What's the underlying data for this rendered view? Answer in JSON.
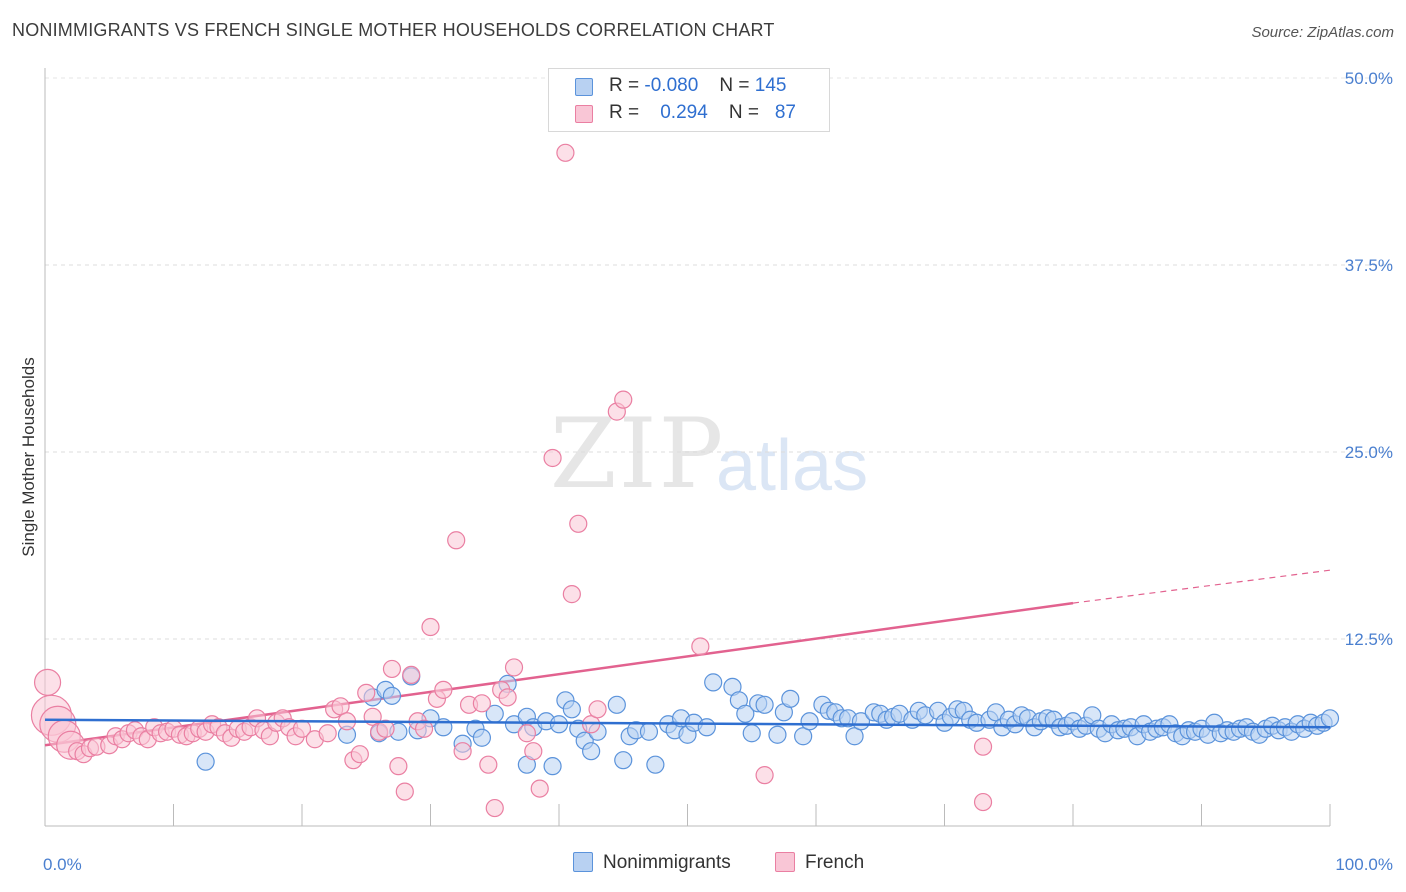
{
  "header": {
    "title": "NONIMMIGRANTS VS FRENCH SINGLE MOTHER HOUSEHOLDS CORRELATION CHART",
    "source": "Source: ZipAtlas.com"
  },
  "watermark": {
    "zip": "ZIP",
    "atlas": "atlas"
  },
  "legend": {
    "rows": [
      {
        "r_label": "R =",
        "r_value": "-0.080",
        "n_label": "N =",
        "n_value": "145"
      },
      {
        "r_label": "R =",
        "r_value": "0.294",
        "n_label": "N =",
        "n_value": "87"
      }
    ]
  },
  "bottom_legend": {
    "series1": "Nonimmigrants",
    "series2": "French"
  },
  "colors": {
    "blue_fill": "#b8d1f2",
    "blue_stroke": "#5b93db",
    "blue_line": "#2f6fd0",
    "pink_fill": "#f9c6d6",
    "pink_stroke": "#ea7fa2",
    "pink_line": "#e2628f"
  },
  "chart_data": {
    "type": "scatter",
    "title": "NONIMMIGRANTS VS FRENCH SINGLE MOTHER HOUSEHOLDS CORRELATION CHART",
    "xlabel": "",
    "ylabel": "Single Mother Households",
    "xlim": [
      0,
      100
    ],
    "ylim": [
      0,
      50
    ],
    "x_tick_labels": [
      "0.0%",
      "100.0%"
    ],
    "y_ticks": [
      12.5,
      25.0,
      37.5,
      50.0
    ],
    "y_tick_labels": [
      "12.5%",
      "25.0%",
      "37.5%",
      "50.0%"
    ],
    "series": [
      {
        "name": "Nonimmigrants",
        "r": -0.08,
        "n": 145,
        "trend": {
          "x0": 0,
          "y0": 7.1,
          "x1": 100,
          "y1": 6.6
        },
        "points": [
          [
            12.5,
            4.3
          ],
          [
            23.5,
            6.1
          ],
          [
            25.5,
            8.6
          ],
          [
            26.0,
            6.2
          ],
          [
            26.5,
            9.1
          ],
          [
            27.0,
            8.7
          ],
          [
            27.5,
            6.3
          ],
          [
            28.5,
            10.0
          ],
          [
            29.0,
            6.4
          ],
          [
            30.0,
            7.2
          ],
          [
            31.0,
            6.6
          ],
          [
            32.5,
            5.5
          ],
          [
            33.5,
            6.5
          ],
          [
            34.0,
            5.9
          ],
          [
            35.0,
            7.5
          ],
          [
            36.0,
            9.5
          ],
          [
            36.5,
            6.8
          ],
          [
            37.5,
            7.3
          ],
          [
            37.5,
            4.1
          ],
          [
            38.0,
            6.6
          ],
          [
            39.0,
            7.0
          ],
          [
            39.5,
            4.0
          ],
          [
            40.0,
            6.8
          ],
          [
            40.5,
            8.4
          ],
          [
            41.0,
            7.8
          ],
          [
            41.5,
            6.5
          ],
          [
            42.0,
            5.7
          ],
          [
            42.5,
            5.0
          ],
          [
            43.0,
            6.3
          ],
          [
            44.5,
            8.1
          ],
          [
            45.0,
            4.4
          ],
          [
            45.5,
            6.0
          ],
          [
            46.0,
            6.4
          ],
          [
            47.0,
            6.3
          ],
          [
            47.5,
            4.1
          ],
          [
            48.5,
            6.8
          ],
          [
            49.0,
            6.4
          ],
          [
            49.5,
            7.2
          ],
          [
            50.0,
            6.1
          ],
          [
            50.5,
            6.9
          ],
          [
            51.5,
            6.6
          ],
          [
            52.0,
            9.6
          ],
          [
            53.5,
            9.3
          ],
          [
            54.0,
            8.4
          ],
          [
            54.5,
            7.5
          ],
          [
            55.0,
            6.2
          ],
          [
            55.5,
            8.2
          ],
          [
            56.0,
            8.1
          ],
          [
            57.0,
            6.1
          ],
          [
            57.5,
            7.6
          ],
          [
            58.0,
            8.5
          ],
          [
            59.0,
            6.0
          ],
          [
            59.5,
            7.0
          ],
          [
            60.5,
            8.1
          ],
          [
            61.0,
            7.7
          ],
          [
            61.5,
            7.6
          ],
          [
            62.0,
            7.2
          ],
          [
            62.5,
            7.2
          ],
          [
            63.0,
            6.0
          ],
          [
            63.5,
            7.0
          ],
          [
            64.5,
            7.6
          ],
          [
            65.0,
            7.5
          ],
          [
            65.5,
            7.1
          ],
          [
            66.0,
            7.3
          ],
          [
            66.5,
            7.5
          ],
          [
            67.5,
            7.1
          ],
          [
            68.0,
            7.7
          ],
          [
            68.5,
            7.4
          ],
          [
            69.5,
            7.7
          ],
          [
            70.0,
            6.9
          ],
          [
            70.5,
            7.3
          ],
          [
            71.0,
            7.8
          ],
          [
            71.5,
            7.7
          ],
          [
            72.0,
            7.1
          ],
          [
            72.5,
            6.9
          ],
          [
            73.5,
            7.1
          ],
          [
            74.0,
            7.6
          ],
          [
            74.5,
            6.6
          ],
          [
            75.0,
            7.1
          ],
          [
            75.5,
            6.8
          ],
          [
            76.0,
            7.4
          ],
          [
            76.5,
            7.2
          ],
          [
            77.0,
            6.6
          ],
          [
            77.5,
            7.0
          ],
          [
            78.0,
            7.2
          ],
          [
            78.5,
            7.1
          ],
          [
            79.0,
            6.6
          ],
          [
            79.5,
            6.7
          ],
          [
            80.0,
            7.0
          ],
          [
            80.5,
            6.5
          ],
          [
            81.0,
            6.7
          ],
          [
            81.5,
            7.4
          ],
          [
            82.0,
            6.5
          ],
          [
            82.5,
            6.2
          ],
          [
            83.0,
            6.8
          ],
          [
            83.5,
            6.4
          ],
          [
            84.0,
            6.5
          ],
          [
            84.5,
            6.6
          ],
          [
            85.0,
            6.0
          ],
          [
            85.5,
            6.8
          ],
          [
            86.0,
            6.3
          ],
          [
            86.5,
            6.5
          ],
          [
            87.0,
            6.6
          ],
          [
            87.5,
            6.8
          ],
          [
            88.0,
            6.2
          ],
          [
            88.5,
            6.0
          ],
          [
            89.0,
            6.4
          ],
          [
            89.5,
            6.3
          ],
          [
            90.0,
            6.5
          ],
          [
            90.5,
            6.1
          ],
          [
            91.0,
            6.9
          ],
          [
            91.5,
            6.2
          ],
          [
            92.0,
            6.4
          ],
          [
            92.5,
            6.3
          ],
          [
            93.0,
            6.5
          ],
          [
            93.5,
            6.6
          ],
          [
            94.0,
            6.3
          ],
          [
            94.5,
            6.1
          ],
          [
            95.0,
            6.5
          ],
          [
            95.5,
            6.7
          ],
          [
            96.0,
            6.4
          ],
          [
            96.5,
            6.6
          ],
          [
            97.0,
            6.3
          ],
          [
            97.5,
            6.8
          ],
          [
            98.0,
            6.5
          ],
          [
            98.5,
            6.9
          ],
          [
            99.0,
            6.7
          ],
          [
            99.5,
            6.9
          ],
          [
            100.0,
            7.2
          ]
        ]
      },
      {
        "name": "French",
        "r": 0.294,
        "n": 87,
        "trend": {
          "x0": 0,
          "y0": 5.4,
          "x1": 80,
          "y1": 14.9,
          "dashed_to": {
            "x": 100,
            "y": 17.1
          }
        },
        "points": [
          [
            0.2,
            9.6
          ],
          [
            0.5,
            7.4
          ],
          [
            1.0,
            6.8
          ],
          [
            1.5,
            6.0
          ],
          [
            2.0,
            5.4
          ],
          [
            2.5,
            5.0
          ],
          [
            3.0,
            4.8
          ],
          [
            3.5,
            5.2
          ],
          [
            4.0,
            5.3
          ],
          [
            5.0,
            5.4
          ],
          [
            5.5,
            6.0
          ],
          [
            6.0,
            5.8
          ],
          [
            6.5,
            6.2
          ],
          [
            7.0,
            6.4
          ],
          [
            7.5,
            6.0
          ],
          [
            8.0,
            5.8
          ],
          [
            8.5,
            6.6
          ],
          [
            9.0,
            6.2
          ],
          [
            9.5,
            6.3
          ],
          [
            10.0,
            6.5
          ],
          [
            10.5,
            6.1
          ],
          [
            11.0,
            6.0
          ],
          [
            11.5,
            6.2
          ],
          [
            12.0,
            6.5
          ],
          [
            12.5,
            6.3
          ],
          [
            13.0,
            6.8
          ],
          [
            13.5,
            6.6
          ],
          [
            14.0,
            6.2
          ],
          [
            14.5,
            5.9
          ],
          [
            15.0,
            6.5
          ],
          [
            15.5,
            6.3
          ],
          [
            16.0,
            6.6
          ],
          [
            16.5,
            7.2
          ],
          [
            17.0,
            6.4
          ],
          [
            17.5,
            6.0
          ],
          [
            18.0,
            6.9
          ],
          [
            18.5,
            7.2
          ],
          [
            19.0,
            6.6
          ],
          [
            19.5,
            6.0
          ],
          [
            20.0,
            6.5
          ],
          [
            21.0,
            5.8
          ],
          [
            22.0,
            6.2
          ],
          [
            22.5,
            7.8
          ],
          [
            23.0,
            8.0
          ],
          [
            23.5,
            7.0
          ],
          [
            24.0,
            4.4
          ],
          [
            24.5,
            4.8
          ],
          [
            25.0,
            8.9
          ],
          [
            25.5,
            7.3
          ],
          [
            26.0,
            6.3
          ],
          [
            26.5,
            6.5
          ],
          [
            27.0,
            10.5
          ],
          [
            27.5,
            4.0
          ],
          [
            28.0,
            2.3
          ],
          [
            28.5,
            10.1
          ],
          [
            29.0,
            7.0
          ],
          [
            29.5,
            6.5
          ],
          [
            30.0,
            13.3
          ],
          [
            30.5,
            8.5
          ],
          [
            31.0,
            9.1
          ],
          [
            32.0,
            19.1
          ],
          [
            32.5,
            5.0
          ],
          [
            33.0,
            8.1
          ],
          [
            34.0,
            8.2
          ],
          [
            34.5,
            4.1
          ],
          [
            35.0,
            1.2
          ],
          [
            35.5,
            9.1
          ],
          [
            36.0,
            8.6
          ],
          [
            36.5,
            10.6
          ],
          [
            37.5,
            6.2
          ],
          [
            38.0,
            5.0
          ],
          [
            38.5,
            2.5
          ],
          [
            40.5,
            45.0
          ],
          [
            39.5,
            24.6
          ],
          [
            41.0,
            15.5
          ],
          [
            41.5,
            20.2
          ],
          [
            42.5,
            6.8
          ],
          [
            43.0,
            7.8
          ],
          [
            44.5,
            27.7
          ],
          [
            45.0,
            28.5
          ],
          [
            51.0,
            12.0
          ],
          [
            56.0,
            3.4
          ],
          [
            73.0,
            5.3
          ],
          [
            73.0,
            1.6
          ]
        ]
      }
    ]
  }
}
